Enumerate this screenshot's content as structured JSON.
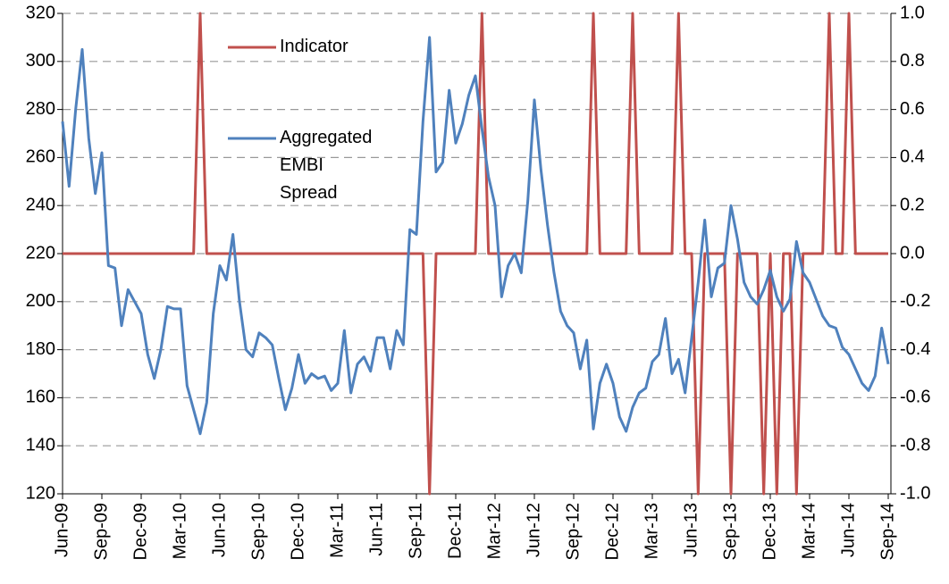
{
  "chart_data": {
    "type": "line",
    "categories": [
      "Jun-09",
      null,
      null,
      null,
      null,
      null,
      "Sep-09",
      null,
      null,
      null,
      null,
      null,
      "Dec-09",
      null,
      null,
      null,
      null,
      null,
      "Mar-10",
      null,
      null,
      null,
      null,
      null,
      "Jun-10",
      null,
      null,
      null,
      null,
      null,
      "Sep-10",
      null,
      null,
      null,
      null,
      null,
      "Dec-10",
      null,
      null,
      null,
      null,
      null,
      "Mar-11",
      null,
      null,
      null,
      null,
      null,
      "Jun-11",
      null,
      null,
      null,
      null,
      null,
      "Sep-11",
      null,
      null,
      null,
      null,
      null,
      "Dec-11",
      null,
      null,
      null,
      null,
      null,
      "Mar-12",
      null,
      null,
      null,
      null,
      null,
      "Jun-12",
      null,
      null,
      null,
      null,
      null,
      "Sep-12",
      null,
      null,
      null,
      null,
      null,
      "Dec-12",
      null,
      null,
      null,
      null,
      null,
      "Mar-13",
      null,
      null,
      null,
      null,
      null,
      "Jun-13",
      null,
      null,
      null,
      null,
      null,
      "Sep-13",
      null,
      null,
      null,
      null,
      null,
      "Dec-13",
      null,
      null,
      null,
      null,
      null,
      "Mar-14",
      null,
      null,
      null,
      null,
      null,
      "Jun-14",
      null,
      null,
      null,
      null,
      null,
      "Sep-14"
    ],
    "series": [
      {
        "name": "Indicator",
        "color": "#c0504d",
        "axis": "y2",
        "values": [
          0,
          0,
          0,
          0,
          0,
          0,
          0,
          0,
          0,
          0,
          0,
          0,
          0,
          0,
          0,
          0,
          0,
          0,
          0,
          0,
          0,
          1,
          0,
          0,
          0,
          0,
          0,
          0,
          0,
          0,
          0,
          0,
          0,
          0,
          0,
          0,
          0,
          0,
          0,
          0,
          0,
          0,
          0,
          0,
          0,
          0,
          0,
          0,
          0,
          0,
          0,
          0,
          0,
          0,
          0,
          0,
          -1,
          0,
          0,
          0,
          0,
          0,
          0,
          0,
          1,
          0,
          0,
          0,
          0,
          0,
          0,
          0,
          0,
          0,
          0,
          0,
          0,
          0,
          0,
          0,
          0,
          1,
          0,
          0,
          0,
          0,
          0,
          1,
          0,
          0,
          0,
          0,
          0,
          0,
          1,
          0,
          0,
          -1,
          0,
          0,
          0,
          0,
          -1,
          0,
          0,
          0,
          0,
          -1,
          0,
          -1,
          0,
          0,
          -1,
          0,
          0,
          0,
          0,
          1,
          0,
          0,
          1,
          0,
          0,
          0,
          0,
          0,
          0
        ]
      },
      {
        "name": "Aggregated EMBI Spread",
        "color": "#4f81bd",
        "values": [
          275,
          248,
          280,
          305,
          268,
          245,
          262,
          215,
          214,
          190,
          205,
          200,
          195,
          178,
          168,
          180,
          198,
          197,
          197,
          165,
          155,
          145,
          158,
          195,
          215,
          209,
          228,
          200,
          180,
          177,
          187,
          185,
          182,
          168,
          155,
          164,
          178,
          166,
          170,
          168,
          169,
          163,
          166,
          188,
          162,
          174,
          177,
          171,
          185,
          185,
          172,
          188,
          182,
          230,
          228,
          275,
          310,
          254,
          258,
          288,
          266,
          274,
          286,
          294,
          272,
          252,
          240,
          202,
          215,
          220,
          212,
          242,
          284,
          255,
          232,
          212,
          196,
          190,
          187,
          172,
          184,
          147,
          166,
          174,
          166,
          152,
          146,
          156,
          162,
          164,
          175,
          178,
          193,
          170,
          176,
          162,
          185,
          208,
          234,
          202,
          214,
          216,
          240,
          226,
          208,
          202,
          199,
          205,
          213,
          202,
          196,
          201,
          225,
          212,
          208,
          201,
          194,
          190,
          189,
          181,
          178,
          172,
          166,
          163,
          169,
          189,
          174
        ]
      }
    ],
    "ylim": [
      120,
      320
    ],
    "yticks": [
      120,
      140,
      160,
      180,
      200,
      220,
      240,
      260,
      280,
      300,
      320
    ],
    "y2lim": [
      -1,
      1
    ],
    "y2ticks": [
      {
        "value": -1,
        "label": "-1.0"
      },
      {
        "value": -0.8,
        "label": "-0.8"
      },
      {
        "value": -0.6,
        "label": "-0.6"
      },
      {
        "value": -0.4,
        "label": "-0.4"
      },
      {
        "value": -0.2,
        "label": "-0.2"
      },
      {
        "value": 0,
        "label": "0.0"
      },
      {
        "value": 0.2,
        "label": "0.2"
      },
      {
        "value": 0.4,
        "label": "0.4"
      },
      {
        "value": 0.6,
        "label": "0.6"
      },
      {
        "value": 0.8,
        "label": "0.8"
      },
      {
        "value": 1,
        "label": "1.0"
      }
    ],
    "grid": true
  }
}
